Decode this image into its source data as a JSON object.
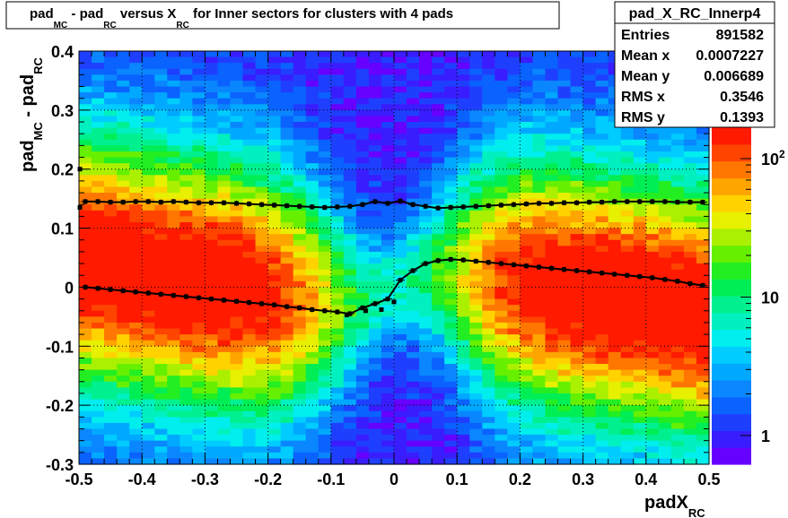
{
  "title": {
    "p1": "pad",
    "s1": "MC",
    "p2": " - pad",
    "s2": "RC",
    "p3": " versus X",
    "s3": "RC",
    "p4": " for Inner sectors for clusters with 4 pads"
  },
  "stats": {
    "name": "pad_X_RC_Innerp4",
    "rows": [
      {
        "label": "Entries",
        "value": "891582"
      },
      {
        "label": "Mean x",
        "value": "0.0007227"
      },
      {
        "label": "Mean y",
        "value": "0.006689"
      },
      {
        "label": "RMS x",
        "value": "0.3546"
      },
      {
        "label": "RMS y",
        "value": "0.1393"
      }
    ]
  },
  "colorbar": {
    "ticks": [
      {
        "label": "1",
        "value": 1
      },
      {
        "label": "10",
        "value": 10
      },
      {
        "label": "10",
        "sup": "2",
        "value": 100
      }
    ],
    "colors": [
      "#6600ff",
      "#3a1dff",
      "#1f3fff",
      "#0a62ff",
      "#0a86ff",
      "#00a8ff",
      "#00ccff",
      "#00eeee",
      "#00f0c0",
      "#00f090",
      "#00ee55",
      "#22ee22",
      "#66f000",
      "#aaf000",
      "#e6f000",
      "#ffd200",
      "#ffa500",
      "#ff7700",
      "#ff4400",
      "#ff1a00"
    ]
  },
  "chart_data": {
    "type": "heatmap",
    "xlabel": {
      "main": "padX",
      "sub": "RC"
    },
    "ylabel": {
      "p1": "pad",
      "s1": "MC",
      "p2": " - pad",
      "s2": "RC"
    },
    "xlim": [
      -0.5,
      0.5
    ],
    "ylim": [
      -0.3,
      0.4
    ],
    "zscale": "log",
    "xticks": [
      -0.5,
      -0.4,
      -0.3,
      -0.2,
      -0.1,
      0,
      0.1,
      0.2,
      0.3,
      0.4,
      0.5
    ],
    "xtick_labels": [
      "-0.5",
      "-0.4",
      "-0.3",
      "-0.2",
      "-0.1",
      "0",
      "0.1",
      "0.2",
      "0.3",
      "0.4",
      "0.5"
    ],
    "yticks": [
      -0.3,
      -0.2,
      -0.1,
      0,
      0.1,
      0.2,
      0.3,
      0.4
    ],
    "ytick_labels": [
      "-0.3",
      "-0.2",
      "-0.1",
      "0",
      "0.1",
      "0.2",
      "0.3",
      "0.4"
    ],
    "grid": true,
    "mean_profile": [
      [
        -0.49,
        0.0
      ],
      [
        -0.47,
        -0.002
      ],
      [
        -0.45,
        -0.004
      ],
      [
        -0.43,
        -0.006
      ],
      [
        -0.41,
        -0.008
      ],
      [
        -0.39,
        -0.01
      ],
      [
        -0.37,
        -0.012
      ],
      [
        -0.35,
        -0.014
      ],
      [
        -0.33,
        -0.016
      ],
      [
        -0.31,
        -0.018
      ],
      [
        -0.29,
        -0.02
      ],
      [
        -0.27,
        -0.022
      ],
      [
        -0.25,
        -0.024
      ],
      [
        -0.23,
        -0.026
      ],
      [
        -0.21,
        -0.028
      ],
      [
        -0.19,
        -0.03
      ],
      [
        -0.17,
        -0.033
      ],
      [
        -0.15,
        -0.035
      ],
      [
        -0.13,
        -0.038
      ],
      [
        -0.11,
        -0.04
      ],
      [
        -0.09,
        -0.042
      ],
      [
        -0.07,
        -0.045
      ],
      [
        -0.05,
        -0.035
      ],
      [
        -0.03,
        -0.028
      ],
      [
        -0.01,
        -0.02
      ],
      [
        0.01,
        0.012
      ],
      [
        0.03,
        0.028
      ],
      [
        0.05,
        0.04
      ],
      [
        0.07,
        0.045
      ],
      [
        0.09,
        0.047
      ],
      [
        0.11,
        0.046
      ],
      [
        0.13,
        0.044
      ],
      [
        0.15,
        0.042
      ],
      [
        0.17,
        0.04
      ],
      [
        0.19,
        0.038
      ],
      [
        0.21,
        0.036
      ],
      [
        0.23,
        0.034
      ],
      [
        0.25,
        0.032
      ],
      [
        0.27,
        0.03
      ],
      [
        0.29,
        0.028
      ],
      [
        0.31,
        0.026
      ],
      [
        0.33,
        0.024
      ],
      [
        0.35,
        0.022
      ],
      [
        0.37,
        0.02
      ],
      [
        0.39,
        0.018
      ],
      [
        0.41,
        0.016
      ],
      [
        0.43,
        0.013
      ],
      [
        0.45,
        0.01
      ],
      [
        0.47,
        0.006
      ],
      [
        0.49,
        0.003
      ]
    ],
    "rms_profile": [
      [
        -0.49,
        0.145
      ],
      [
        -0.47,
        0.145
      ],
      [
        -0.45,
        0.144
      ],
      [
        -0.43,
        0.144
      ],
      [
        -0.41,
        0.145
      ],
      [
        -0.39,
        0.145
      ],
      [
        -0.37,
        0.144
      ],
      [
        -0.35,
        0.145
      ],
      [
        -0.33,
        0.144
      ],
      [
        -0.31,
        0.143
      ],
      [
        -0.29,
        0.143
      ],
      [
        -0.27,
        0.143
      ],
      [
        -0.25,
        0.142
      ],
      [
        -0.23,
        0.141
      ],
      [
        -0.21,
        0.14
      ],
      [
        -0.19,
        0.139
      ],
      [
        -0.17,
        0.138
      ],
      [
        -0.15,
        0.137
      ],
      [
        -0.13,
        0.136
      ],
      [
        -0.11,
        0.135
      ],
      [
        -0.09,
        0.136
      ],
      [
        -0.07,
        0.137
      ],
      [
        -0.05,
        0.14
      ],
      [
        -0.03,
        0.145
      ],
      [
        -0.01,
        0.142
      ],
      [
        0.01,
        0.146
      ],
      [
        0.03,
        0.14
      ],
      [
        0.05,
        0.137
      ],
      [
        0.07,
        0.134
      ],
      [
        0.09,
        0.135
      ],
      [
        0.11,
        0.136
      ],
      [
        0.13,
        0.137
      ],
      [
        0.15,
        0.138
      ],
      [
        0.17,
        0.139
      ],
      [
        0.19,
        0.14
      ],
      [
        0.21,
        0.141
      ],
      [
        0.23,
        0.142
      ],
      [
        0.25,
        0.142
      ],
      [
        0.27,
        0.143
      ],
      [
        0.29,
        0.143
      ],
      [
        0.31,
        0.144
      ],
      [
        0.33,
        0.144
      ],
      [
        0.35,
        0.145
      ],
      [
        0.37,
        0.145
      ],
      [
        0.39,
        0.145
      ],
      [
        0.41,
        0.145
      ],
      [
        0.43,
        0.145
      ],
      [
        0.45,
        0.144
      ],
      [
        0.47,
        0.144
      ],
      [
        0.49,
        0.144
      ]
    ],
    "outlier_points": [
      [
        -0.4985,
        0.2
      ],
      [
        -0.4985,
        0.135
      ],
      [
        -0.045,
        -0.04
      ],
      [
        -0.075,
        -0.047
      ],
      [
        0.0,
        -0.025
      ],
      [
        -0.02,
        -0.038
      ]
    ]
  }
}
